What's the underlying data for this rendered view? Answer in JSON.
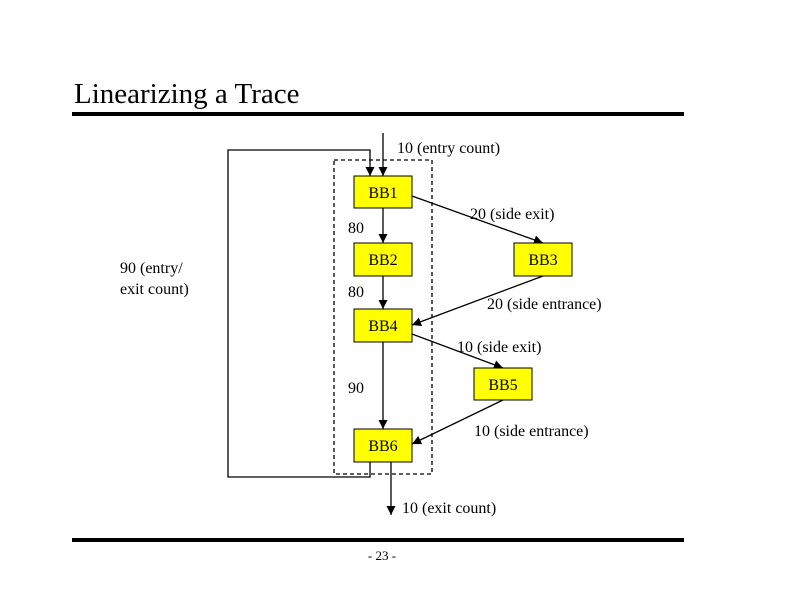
{
  "header": {
    "title": "Linearizing a Trace"
  },
  "nodes": [
    {
      "label": "BB1"
    },
    {
      "label": "BB2"
    },
    {
      "label": "BB3"
    },
    {
      "label": "BB4"
    },
    {
      "label": "BB5"
    },
    {
      "label": "BB6"
    }
  ],
  "edge_labels": {
    "entry": "10 (entry count)",
    "bb1_bb2": "80",
    "bb1_bb3": "20 (side exit)",
    "bb2_bb4": "80",
    "bb3_bb4": "20 (side entrance)",
    "bb4_bb5": "10 (side exit)",
    "bb4_bb6": "90",
    "bb5_bb6": "10 (side entrance)",
    "exit": "10 (exit count)",
    "loop": [
      "90 (entry/",
      "exit count)"
    ]
  },
  "footer": {
    "page_number": "- 23 -"
  }
}
